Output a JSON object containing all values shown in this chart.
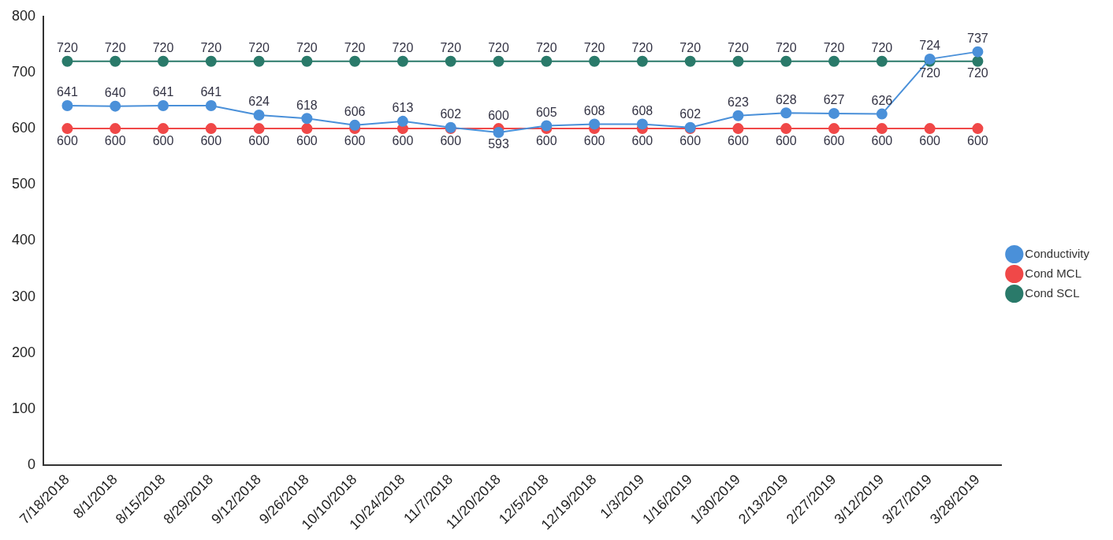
{
  "chart_data": {
    "type": "line",
    "categories": [
      "7/18/2018",
      "8/1/2018",
      "8/15/2018",
      "8/29/2018",
      "9/12/2018",
      "9/26/2018",
      "10/10/2018",
      "10/24/2018",
      "11/7/2018",
      "11/20/2018",
      "12/5/2018",
      "12/19/2018",
      "1/3/2019",
      "1/16/2019",
      "1/30/2019",
      "2/13/2019",
      "2/27/2019",
      "3/12/2019",
      "3/27/2019",
      "3/28/2019"
    ],
    "series": [
      {
        "name": "Conductivity",
        "color": "#4a90d9",
        "values": [
          641,
          640,
          641,
          641,
          624,
          618,
          606,
          613,
          602,
          593,
          605,
          608,
          608,
          602,
          623,
          628,
          627,
          626,
          724,
          737
        ]
      },
      {
        "name": "Cond MCL",
        "color": "#f04848",
        "values": [
          600,
          600,
          600,
          600,
          600,
          600,
          600,
          600,
          600,
          600,
          600,
          600,
          600,
          600,
          600,
          600,
          600,
          600,
          600,
          600
        ]
      },
      {
        "name": "Cond SCL",
        "color": "#2a7a6a",
        "values": [
          720,
          720,
          720,
          720,
          720,
          720,
          720,
          720,
          720,
          720,
          720,
          720,
          720,
          720,
          720,
          720,
          720,
          720,
          720,
          720
        ]
      }
    ],
    "ylim": [
      0,
      800
    ],
    "yticks": [
      0,
      100,
      200,
      300,
      400,
      500,
      600,
      700,
      800
    ],
    "grid": false,
    "legend": "right",
    "marker": "circle",
    "line_style": "solid",
    "data_labels": true
  }
}
